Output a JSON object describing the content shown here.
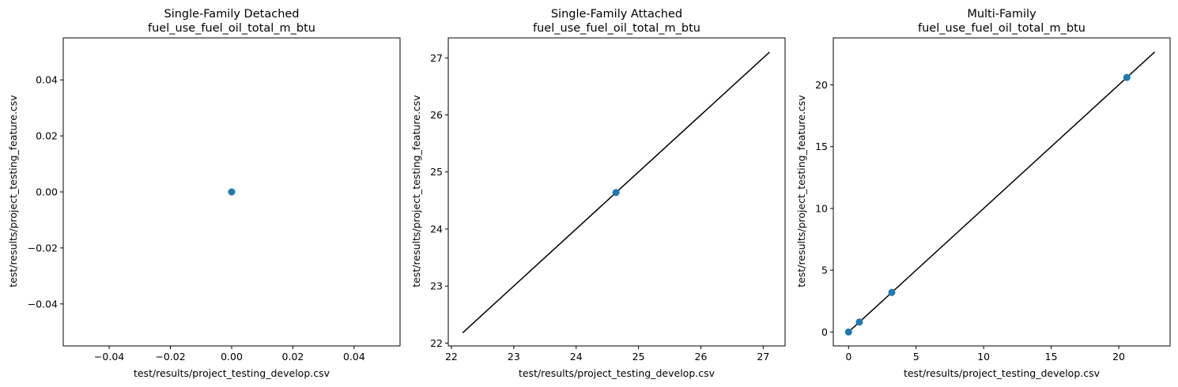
{
  "figure": {
    "background": "#ffffff"
  },
  "colors": {
    "point": "#1f77b4",
    "identity_line": "#000000",
    "axes": "#000000"
  },
  "chart_data": [
    {
      "type": "scatter",
      "title": "Single-Family Detached",
      "subtitle": "fuel_use_fuel_oil_total_m_btu",
      "xlabel": "test/results/project_testing_develop.csv",
      "ylabel": "test/results/project_testing_feature.csv",
      "xlim": [
        -0.055,
        0.055
      ],
      "ylim": [
        -0.055,
        0.055
      ],
      "xticks": [
        -0.04,
        -0.02,
        0.0,
        0.02,
        0.04
      ],
      "xtick_labels": [
        "−0.04",
        "−0.02",
        "0.00",
        "0.02",
        "0.04"
      ],
      "yticks": [
        -0.04,
        -0.02,
        0.0,
        0.02,
        0.04
      ],
      "ytick_labels": [
        "−0.04",
        "−0.02",
        "0.00",
        "0.02",
        "0.04"
      ],
      "points": [
        {
          "x": 0.0,
          "y": 0.0
        }
      ],
      "identity_line": null,
      "grid": false
    },
    {
      "type": "scatter",
      "title": "Single-Family Attached",
      "subtitle": "fuel_use_fuel_oil_total_m_btu",
      "xlabel": "test/results/project_testing_develop.csv",
      "ylabel": "test/results/project_testing_feature.csv",
      "xlim": [
        21.95,
        27.35
      ],
      "ylim": [
        21.95,
        27.35
      ],
      "xticks": [
        22,
        23,
        24,
        25,
        26,
        27
      ],
      "xtick_labels": [
        "22",
        "23",
        "24",
        "25",
        "26",
        "27"
      ],
      "yticks": [
        22,
        23,
        24,
        25,
        26,
        27
      ],
      "ytick_labels": [
        "22",
        "23",
        "24",
        "25",
        "26",
        "27"
      ],
      "points": [
        {
          "x": 24.64,
          "y": 24.64
        }
      ],
      "identity_line": [
        [
          22.18,
          22.18
        ],
        [
          27.1,
          27.1
        ]
      ],
      "grid": false
    },
    {
      "type": "scatter",
      "title": "Multi-Family",
      "subtitle": "fuel_use_fuel_oil_total_m_btu",
      "xlabel": "test/results/project_testing_develop.csv",
      "ylabel": "test/results/project_testing_feature.csv",
      "xlim": [
        -1.13,
        23.8
      ],
      "ylim": [
        -1.13,
        23.8
      ],
      "xticks": [
        0,
        5,
        10,
        15,
        20
      ],
      "xtick_labels": [
        "0",
        "5",
        "10",
        "15",
        "20"
      ],
      "yticks": [
        0,
        5,
        10,
        15,
        20
      ],
      "ytick_labels": [
        "0",
        "5",
        "10",
        "15",
        "20"
      ],
      "points": [
        {
          "x": 0.0,
          "y": 0.0
        },
        {
          "x": 0.8,
          "y": 0.8
        },
        {
          "x": 3.2,
          "y": 3.2
        },
        {
          "x": 20.6,
          "y": 20.6
        }
      ],
      "identity_line": [
        [
          0.0,
          0.0
        ],
        [
          22.66,
          22.66
        ]
      ],
      "grid": false
    }
  ]
}
